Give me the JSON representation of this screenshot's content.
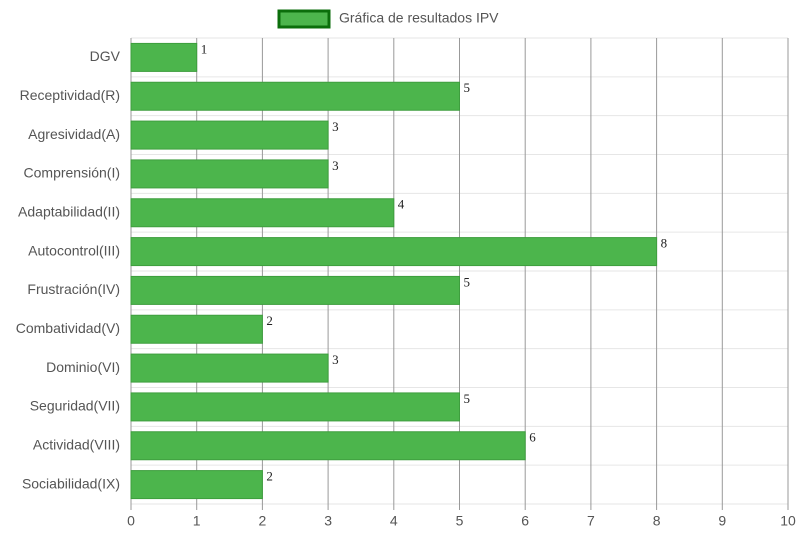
{
  "chart_data": {
    "type": "bar",
    "orientation": "horizontal",
    "categories": [
      "DGV",
      "Receptividad(R)",
      "Agresividad(A)",
      "Comprensión(I)",
      "Adaptabilidad(II)",
      "Autocontrol(III)",
      "Frustración(IV)",
      "Combatividad(V)",
      "Dominio(VI)",
      "Seguridad(VII)",
      "Actividad(VIII)",
      "Sociabilidad(IX)"
    ],
    "series": [
      {
        "name": "Gráfica de resultados IPV",
        "color": "#4cb54c",
        "values": [
          1,
          5,
          3,
          3,
          4,
          8,
          5,
          2,
          3,
          5,
          6,
          2
        ]
      }
    ],
    "xlim": [
      0,
      10
    ],
    "xticks": [
      0,
      1,
      2,
      3,
      4,
      5,
      6,
      7,
      8,
      9,
      10
    ],
    "grid": true,
    "legend": "top"
  }
}
